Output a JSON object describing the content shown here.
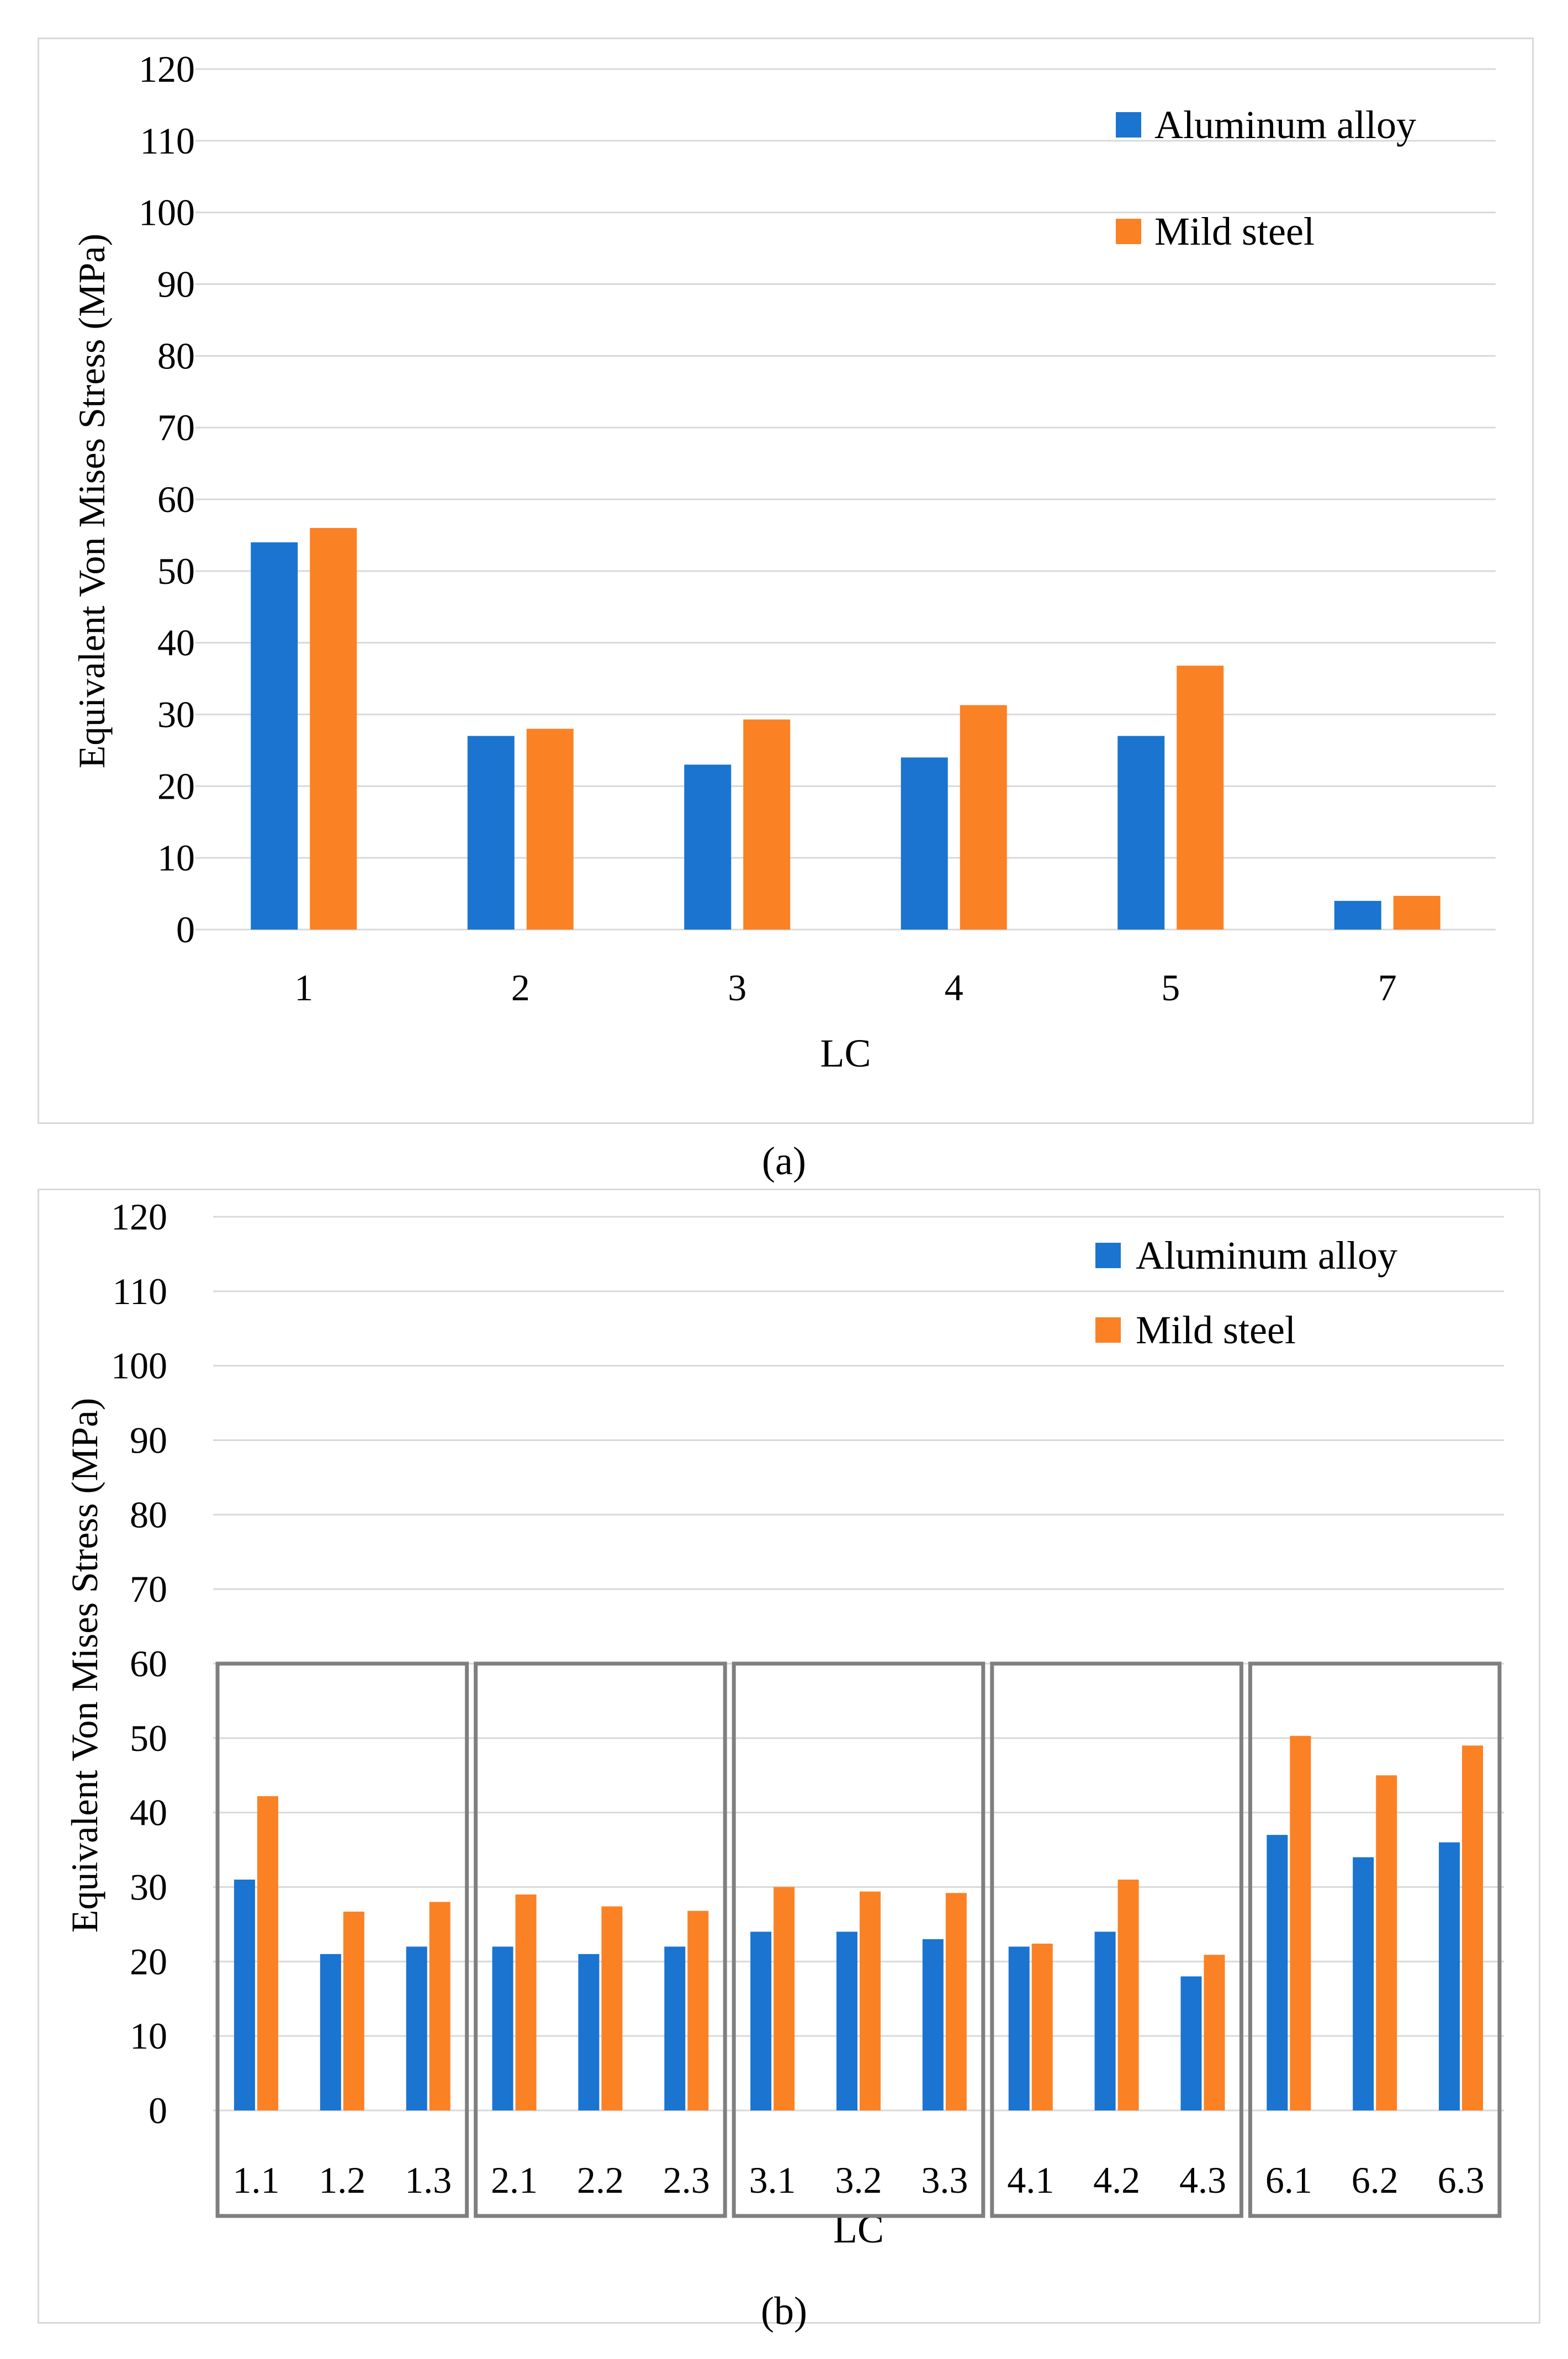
{
  "colors": {
    "aluminum": "#1a74d0",
    "steel": "#fb8125",
    "grid": "#d9d9d9",
    "group_box": "#7f7f7f"
  },
  "chart_data": [
    {
      "id": "a",
      "type": "bar",
      "caption": "(a)",
      "xlabel": "LC",
      "ylabel": "Equivalent Von Mises Stress (MPa)",
      "ylim": [
        0,
        120
      ],
      "yticks": [
        0,
        10,
        20,
        30,
        40,
        50,
        60,
        70,
        80,
        90,
        100,
        110,
        120
      ],
      "grid": true,
      "legend_position": "top-right",
      "categories": [
        "1",
        "2",
        "3",
        "4",
        "5",
        "7"
      ],
      "series": [
        {
          "name": "Aluminum alloy",
          "color": "#1a74d0",
          "values": [
            54,
            27,
            23,
            24,
            27,
            4
          ]
        },
        {
          "name": "Mild steel",
          "color": "#fb8125",
          "values": [
            56,
            28,
            29.3,
            31.3,
            36.8,
            4.7
          ]
        }
      ]
    },
    {
      "id": "b",
      "type": "bar",
      "caption": "(b)",
      "xlabel": "LC",
      "ylabel": "Equivalent Von Mises Stress (MPa)",
      "ylim": [
        0,
        120
      ],
      "yticks": [
        0,
        10,
        20,
        30,
        40,
        50,
        60,
        70,
        80,
        90,
        100,
        110,
        120
      ],
      "grid": true,
      "legend_position": "top-right",
      "categories": [
        "1.1",
        "1.2",
        "1.3",
        "2.1",
        "2.2",
        "2.3",
        "3.1",
        "3.2",
        "3.3",
        "4.1",
        "4.2",
        "4.3",
        "6.1",
        "6.2",
        "6.3"
      ],
      "groups": [
        [
          "1.1",
          "1.2",
          "1.3"
        ],
        [
          "2.1",
          "2.2",
          "2.3"
        ],
        [
          "3.1",
          "3.2",
          "3.3"
        ],
        [
          "4.1",
          "4.2",
          "4.3"
        ],
        [
          "6.1",
          "6.2",
          "6.3"
        ]
      ],
      "group_box_top_value": 60,
      "series": [
        {
          "name": "Aluminum alloy",
          "color": "#1a74d0",
          "values": [
            31,
            21,
            22,
            22,
            21,
            22,
            24,
            24,
            23,
            22,
            24,
            18,
            37,
            34,
            36
          ]
        },
        {
          "name": "Mild steel",
          "color": "#fb8125",
          "values": [
            42.2,
            26.7,
            28,
            29,
            27.4,
            26.8,
            30,
            29.4,
            29.2,
            22.4,
            31,
            20.9,
            50.3,
            45,
            49
          ]
        }
      ]
    }
  ]
}
